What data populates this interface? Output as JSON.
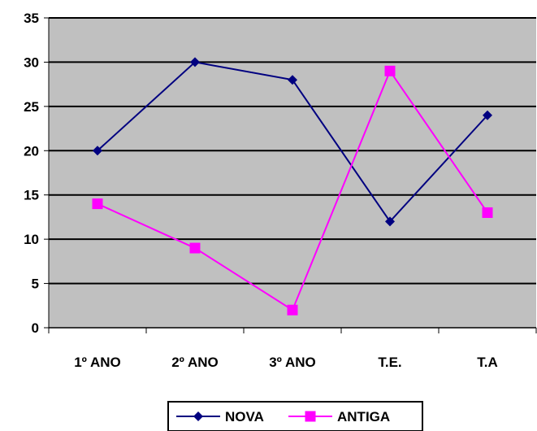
{
  "chart_data": {
    "type": "line",
    "categories": [
      "1º ANO",
      "2º ANO",
      "3º ANO",
      "T.E.",
      "T.A"
    ],
    "series": [
      {
        "name": "NOVA",
        "values": [
          20,
          30,
          28,
          12,
          24
        ],
        "color": "#000080",
        "marker": "diamond"
      },
      {
        "name": "ANTIGA",
        "values": [
          14,
          9,
          2,
          29,
          13
        ],
        "color": "#FF00FF",
        "marker": "square"
      }
    ],
    "ylim": [
      0,
      35
    ],
    "yticks": [
      0,
      5,
      10,
      15,
      20,
      25,
      30,
      35
    ],
    "grid": true,
    "plot_background": "#C0C0C0",
    "legend_position": "bottom"
  }
}
